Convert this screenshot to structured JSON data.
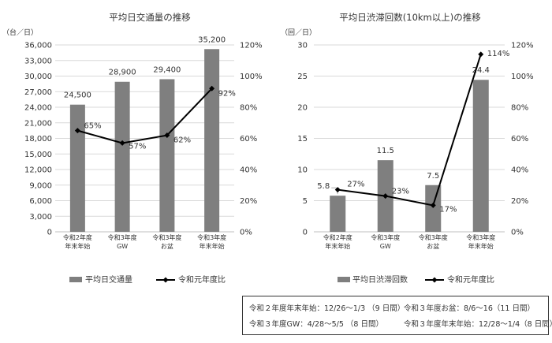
{
  "colors": {
    "bar": "#7f7f7f",
    "line": "#000000",
    "grid": "#d9d9d9",
    "axis": "#bfbfbf"
  },
  "chart_data": [
    {
      "type": "bar",
      "title": "平均日交通量の推移",
      "ylabel": "（台／日）",
      "categories": [
        [
          "令和2年度",
          "年末年始"
        ],
        [
          "令和3年度",
          "GW"
        ],
        [
          "令和3年度",
          "お盆"
        ],
        [
          "令和3年度",
          "年末年始"
        ]
      ],
      "ylim": [
        0,
        36000
      ],
      "yticks": [
        "0",
        "3,000",
        "6,000",
        "9,000",
        "12,000",
        "15,000",
        "18,000",
        "21,000",
        "24,000",
        "27,000",
        "30,000",
        "33,000",
        "36,000"
      ],
      "y2lim": [
        0,
        120
      ],
      "y2ticks": [
        "0%",
        "20%",
        "40%",
        "60%",
        "80%",
        "100%",
        "120%"
      ],
      "grid": true,
      "legend_position": "bottom",
      "series": [
        {
          "name": "平均日交通量",
          "type": "bar",
          "axis": "left",
          "values": [
            24500,
            28900,
            29400,
            35200
          ],
          "labels": [
            "24,500",
            "28,900",
            "29,400",
            "35,200"
          ]
        },
        {
          "name": "令和元年度比",
          "type": "line",
          "axis": "right",
          "values": [
            65,
            57,
            62,
            92
          ],
          "labels": [
            "65%",
            "57%",
            "62%",
            "92%"
          ]
        }
      ]
    },
    {
      "type": "bar",
      "title": "平均日渋滞回数(10km以上)の推移",
      "ylabel": "（回／日）",
      "categories": [
        [
          "令和2年度",
          "年末年始"
        ],
        [
          "令和3年度",
          "GW"
        ],
        [
          "令和3年度",
          "お盆"
        ],
        [
          "令和3年度",
          "年末年始"
        ]
      ],
      "ylim": [
        0,
        30
      ],
      "yticks": [
        "0",
        "5",
        "10",
        "15",
        "20",
        "25",
        "30"
      ],
      "y2lim": [
        0,
        120
      ],
      "y2ticks": [
        "0%",
        "20%",
        "40%",
        "60%",
        "80%",
        "100%",
        "120%"
      ],
      "grid": true,
      "legend_position": "bottom",
      "series": [
        {
          "name": "平均日渋滞回数",
          "type": "bar",
          "axis": "left",
          "values": [
            5.8,
            11.5,
            7.5,
            24.4
          ],
          "labels": [
            "5.8",
            "11.5",
            "7.5",
            "24.4"
          ]
        },
        {
          "name": "令和元年度比",
          "type": "line",
          "axis": "right",
          "values": [
            27,
            23,
            17,
            114
          ],
          "labels": [
            "27%",
            "23%",
            "17%",
            "114%"
          ]
        }
      ]
    }
  ],
  "notes": [
    "令和２年度年末年始：12/26～1/3 （9 日間）",
    "令和３年度お盆：8/6～16（11 日間）",
    "令和３年度GW：4/28～5/5 （8 日間）",
    "令和３年度年末年始：12/28～1/4（8 日間）"
  ]
}
